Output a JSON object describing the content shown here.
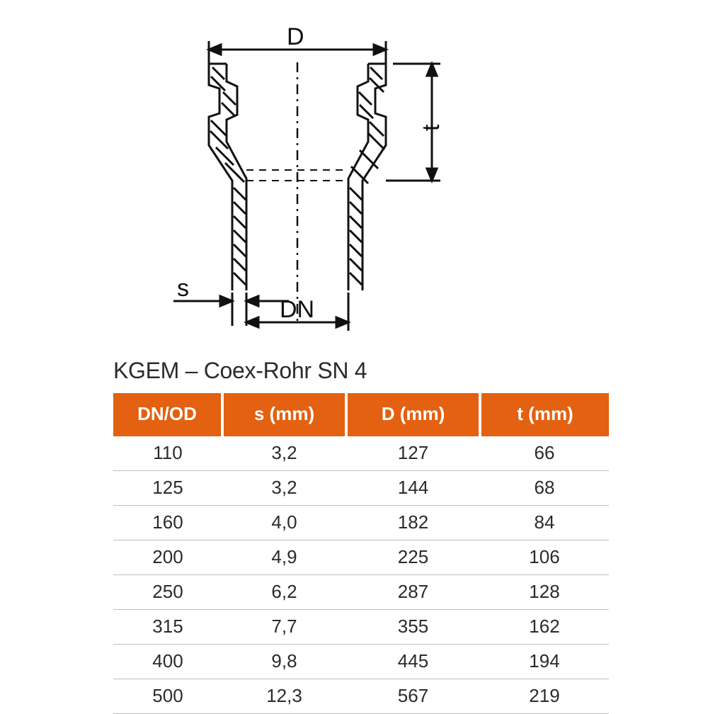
{
  "diagram": {
    "labels": {
      "D": "D",
      "t": "t",
      "s": "s",
      "DN": "DN"
    },
    "stroke": "#111111",
    "stroke_width": 3,
    "dash_pattern": "14 6 3 6",
    "label_fontsize": 34
  },
  "title": "KGEM – Coex-Rohr SN 4",
  "table": {
    "header_bg": "#e36110",
    "header_fg": "#ffffff",
    "row_border": "#bfbfbf",
    "cell_fontsize": 26,
    "columns": [
      "DN/OD",
      "s (mm)",
      "D (mm)",
      "t (mm)"
    ],
    "col_widths_pct": [
      22,
      25,
      27,
      26
    ],
    "rows": [
      [
        "110",
        "3,2",
        "127",
        "66"
      ],
      [
        "125",
        "3,2",
        "144",
        "68"
      ],
      [
        "160",
        "4,0",
        "182",
        "84"
      ],
      [
        "200",
        "4,9",
        "225",
        "106"
      ],
      [
        "250",
        "6,2",
        "287",
        "128"
      ],
      [
        "315",
        "7,7",
        "355",
        "162"
      ],
      [
        "400",
        "9,8",
        "445",
        "194"
      ],
      [
        "500",
        "12,3",
        "567",
        "219"
      ]
    ]
  }
}
